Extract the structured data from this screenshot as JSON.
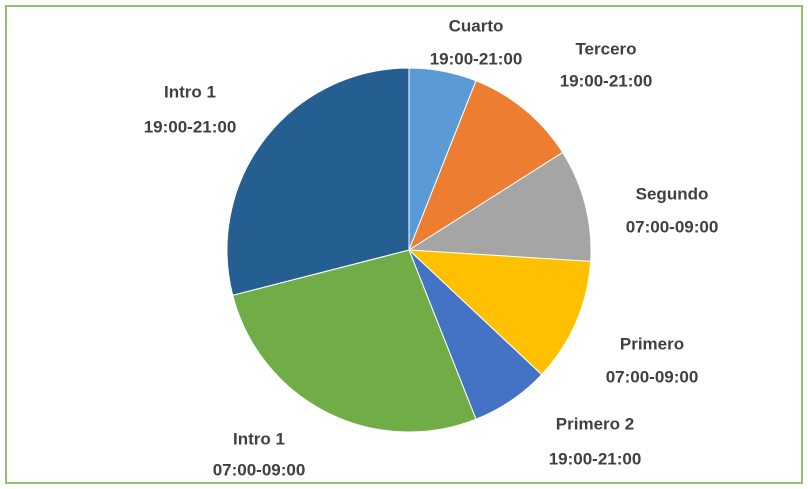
{
  "chart_data": {
    "type": "pie",
    "categories": [
      [
        "Cuarto",
        "19:00-21:00"
      ],
      [
        "Tercero",
        "19:00-21:00"
      ],
      [
        "Segundo",
        "07:00-09:00"
      ],
      [
        "Primero",
        "07:00-09:00"
      ],
      [
        "Primero 2",
        "19:00-21:00"
      ],
      [
        "Intro 1",
        "07:00-09:00"
      ],
      [
        "Intro 1",
        "19:00-21:00"
      ]
    ],
    "values": [
      6,
      10,
      10,
      11,
      7,
      27,
      29
    ],
    "colors": [
      "#5b9bd5",
      "#ed7d31",
      "#a5a5a5",
      "#ffc000",
      "#4472c4",
      "#70ad47",
      "#255e91"
    ]
  }
}
